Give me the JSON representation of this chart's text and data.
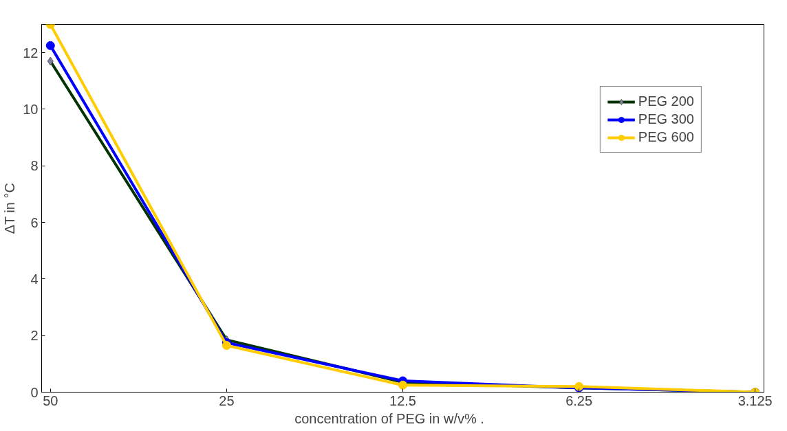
{
  "chart_data": {
    "type": "line",
    "xlabel": "concentration of PEG in w/v%        .",
    "ylabel": "ΔT in °C",
    "categories": [
      "50",
      "25",
      "12.5",
      "6.25",
      "3.125"
    ],
    "series": [
      {
        "name": "PEG 200",
        "color": "#003300",
        "marker": "diamond",
        "values": [
          11.7,
          1.85,
          0.35,
          0.15,
          0.0
        ]
      },
      {
        "name": "PEG 300",
        "color": "#0000ff",
        "marker": "circle",
        "values": [
          12.25,
          1.75,
          0.4,
          0.15,
          0.0
        ]
      },
      {
        "name": "PEG 600",
        "color": "#ffcc00",
        "marker": "circle",
        "values": [
          13.0,
          1.65,
          0.25,
          0.2,
          0.0
        ]
      }
    ],
    "ylim": [
      0,
      13
    ],
    "yticks": [
      0,
      2,
      4,
      6,
      8,
      10,
      12
    ],
    "grid": false,
    "legend": "top right",
    "line_style": "solid"
  }
}
